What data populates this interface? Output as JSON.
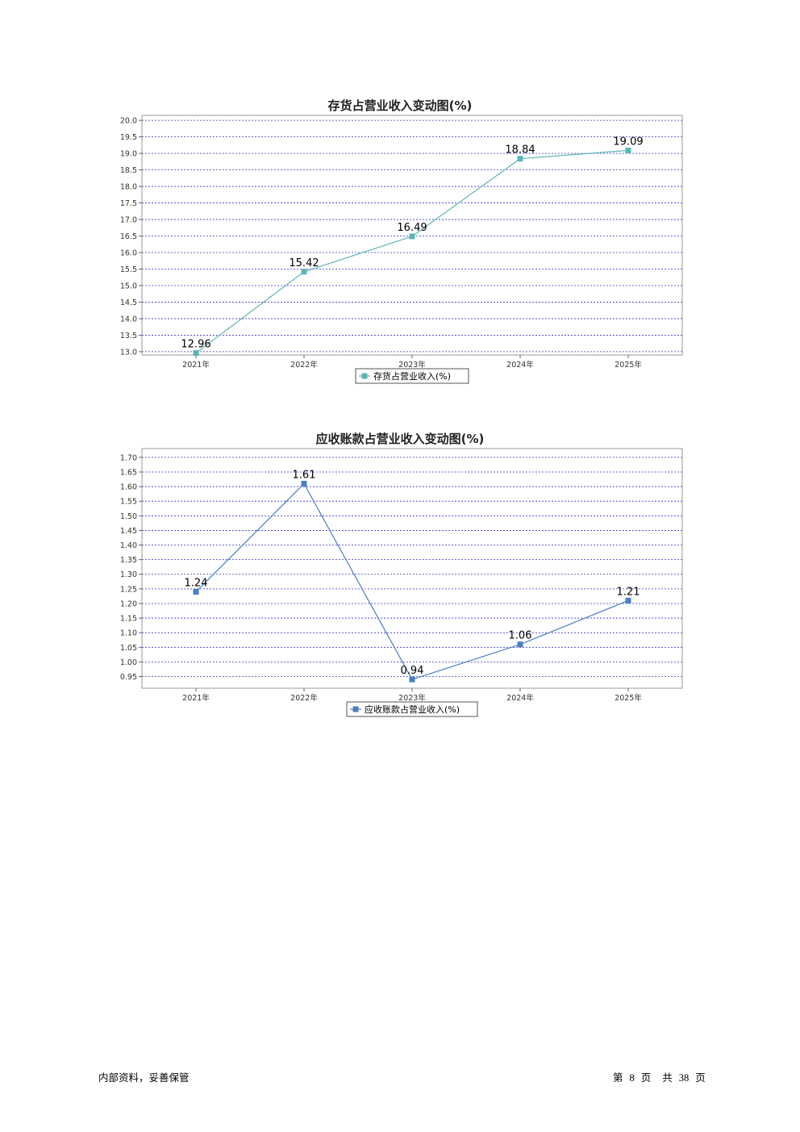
{
  "chart_data": [
    {
      "type": "line",
      "title": "存货占营业收入变动图(%)",
      "categories": [
        "2021年",
        "2022年",
        "2023年",
        "2024年",
        "2025年"
      ],
      "series": [
        {
          "name": "存货占营业收入(%)",
          "values": [
            12.96,
            15.42,
            16.49,
            18.84,
            19.09
          ],
          "color": "#5bb5b5"
        }
      ],
      "ylim": [
        12.9,
        20.15
      ],
      "yticks": [
        13.0,
        13.5,
        14.0,
        14.5,
        15.0,
        15.5,
        16.0,
        16.5,
        17.0,
        17.5,
        18.0,
        18.5,
        19.0,
        19.5,
        20.0
      ],
      "ytick_labels": [
        "13.0",
        "13.5",
        "14.0",
        "14.5",
        "15.0",
        "15.5",
        "16.0",
        "16.5",
        "17.0",
        "17.5",
        "18.0",
        "18.5",
        "19.0",
        "19.5",
        "20.0"
      ],
      "data_labels": [
        "12.96",
        "15.42",
        "16.49",
        "18.84",
        "19.09"
      ],
      "grid": true,
      "grid_color": "#3333cc",
      "legend": "bottom"
    },
    {
      "type": "line",
      "title": "应收账款占营业收入变动图(%)",
      "categories": [
        "2021年",
        "2022年",
        "2023年",
        "2024年",
        "2025年"
      ],
      "series": [
        {
          "name": "应收账款占营业收入(%)",
          "values": [
            1.24,
            1.61,
            0.94,
            1.06,
            1.21
          ],
          "color": "#4a7fc1"
        }
      ],
      "ylim": [
        0.91,
        1.73
      ],
      "yticks": [
        0.95,
        1.0,
        1.05,
        1.1,
        1.15,
        1.2,
        1.25,
        1.3,
        1.35,
        1.4,
        1.45,
        1.5,
        1.55,
        1.6,
        1.65,
        1.7
      ],
      "ytick_labels": [
        "0.95",
        "1.00",
        "1.05",
        "1.10",
        "1.15",
        "1.20",
        "1.25",
        "1.30",
        "1.35",
        "1.40",
        "1.45",
        "1.50",
        "1.55",
        "1.60",
        "1.65",
        "1.70"
      ],
      "data_labels": [
        "1.24",
        "1.61",
        "0.94",
        "1.06",
        "1.21"
      ],
      "grid": true,
      "grid_color": "#3333cc",
      "legend": "bottom"
    }
  ],
  "footer": {
    "left": "内部资料，妥善保管",
    "page_prefix": "第",
    "page_num": "8",
    "page_unit": "页",
    "total_prefix": "共",
    "total_num": "38",
    "total_unit": "页"
  }
}
